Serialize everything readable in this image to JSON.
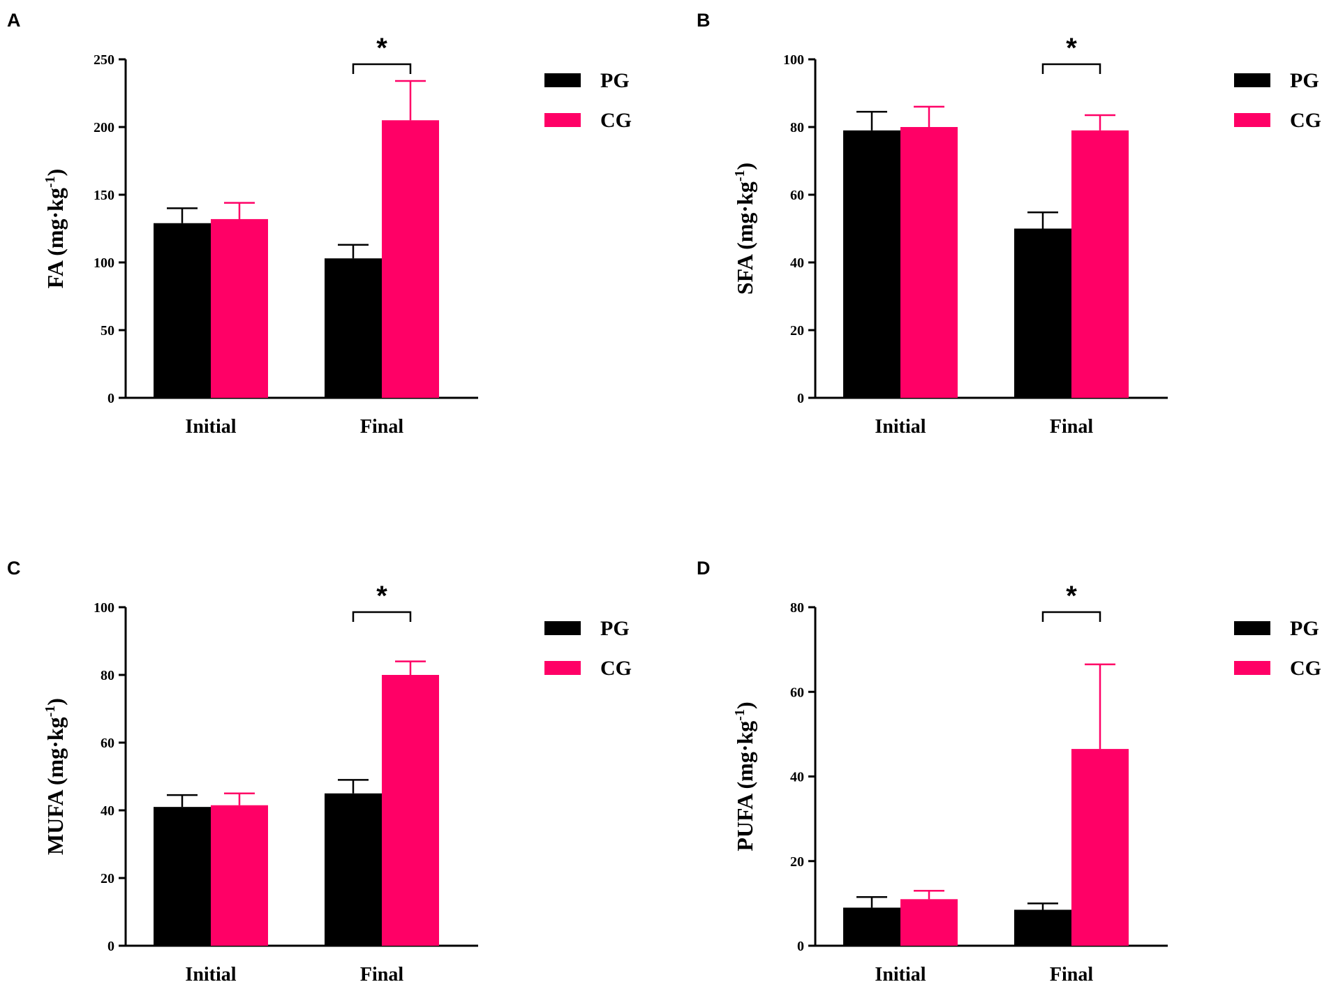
{
  "figure": {
    "colors": {
      "PG": "#000000",
      "CG": "#ff0066"
    }
  },
  "chart_data": [
    {
      "panel": "A",
      "type": "bar",
      "ylabel": "FA (mg·kg",
      "ylabel_sup": "-1",
      "ylabel_close": ")",
      "ylim": [
        0,
        250
      ],
      "yticks": [
        0,
        50,
        100,
        150,
        200,
        250
      ],
      "categories": [
        "Initial",
        "Final"
      ],
      "series": [
        {
          "name": "PG",
          "values": [
            129,
            103
          ],
          "errors": [
            11,
            10
          ]
        },
        {
          "name": "CG",
          "values": [
            132,
            205
          ],
          "errors": [
            12,
            29
          ]
        }
      ],
      "annotations": [
        {
          "category": "Final",
          "text": "*"
        }
      ],
      "legend": {
        "placement": "right",
        "entries": [
          "PG",
          "CG"
        ]
      }
    },
    {
      "panel": "B",
      "type": "bar",
      "ylabel": "SFA (mg·kg",
      "ylabel_sup": "-1",
      "ylabel_close": ")",
      "ylim": [
        0,
        100
      ],
      "yticks": [
        0,
        20,
        40,
        60,
        80,
        100
      ],
      "categories": [
        "Initial",
        "Final"
      ],
      "series": [
        {
          "name": "PG",
          "values": [
            79,
            50
          ],
          "errors": [
            5.5,
            4.8
          ]
        },
        {
          "name": "CG",
          "values": [
            80,
            79
          ],
          "errors": [
            6,
            4.5
          ]
        }
      ],
      "annotations": [
        {
          "category": "Final",
          "text": "*"
        }
      ],
      "legend": {
        "placement": "right",
        "entries": [
          "PG",
          "CG"
        ]
      }
    },
    {
      "panel": "C",
      "type": "bar",
      "ylabel": "MUFA (mg·kg",
      "ylabel_sup": "-1",
      "ylabel_close": ")",
      "ylim": [
        0,
        100
      ],
      "yticks": [
        0,
        20,
        40,
        60,
        80,
        100
      ],
      "categories": [
        "Initial",
        "Final"
      ],
      "series": [
        {
          "name": "PG",
          "values": [
            41,
            45
          ],
          "errors": [
            3.5,
            4
          ]
        },
        {
          "name": "CG",
          "values": [
            41.5,
            80
          ],
          "errors": [
            3.5,
            4
          ]
        }
      ],
      "annotations": [
        {
          "category": "Final",
          "text": "*"
        }
      ],
      "legend": {
        "placement": "right",
        "entries": [
          "PG",
          "CG"
        ]
      }
    },
    {
      "panel": "D",
      "type": "bar",
      "ylabel": "PUFA (mg·kg",
      "ylabel_sup": "-1",
      "ylabel_close": ")",
      "ylim": [
        0,
        80
      ],
      "yticks": [
        0,
        20,
        40,
        60,
        80
      ],
      "categories": [
        "Initial",
        "Final"
      ],
      "series": [
        {
          "name": "PG",
          "values": [
            9,
            8.5
          ],
          "errors": [
            2.5,
            1.5
          ]
        },
        {
          "name": "CG",
          "values": [
            11,
            46.5
          ],
          "errors": [
            2,
            20
          ]
        }
      ],
      "annotations": [
        {
          "category": "Final",
          "text": "*"
        }
      ],
      "legend": {
        "placement": "right",
        "entries": [
          "PG",
          "CG"
        ]
      }
    }
  ]
}
